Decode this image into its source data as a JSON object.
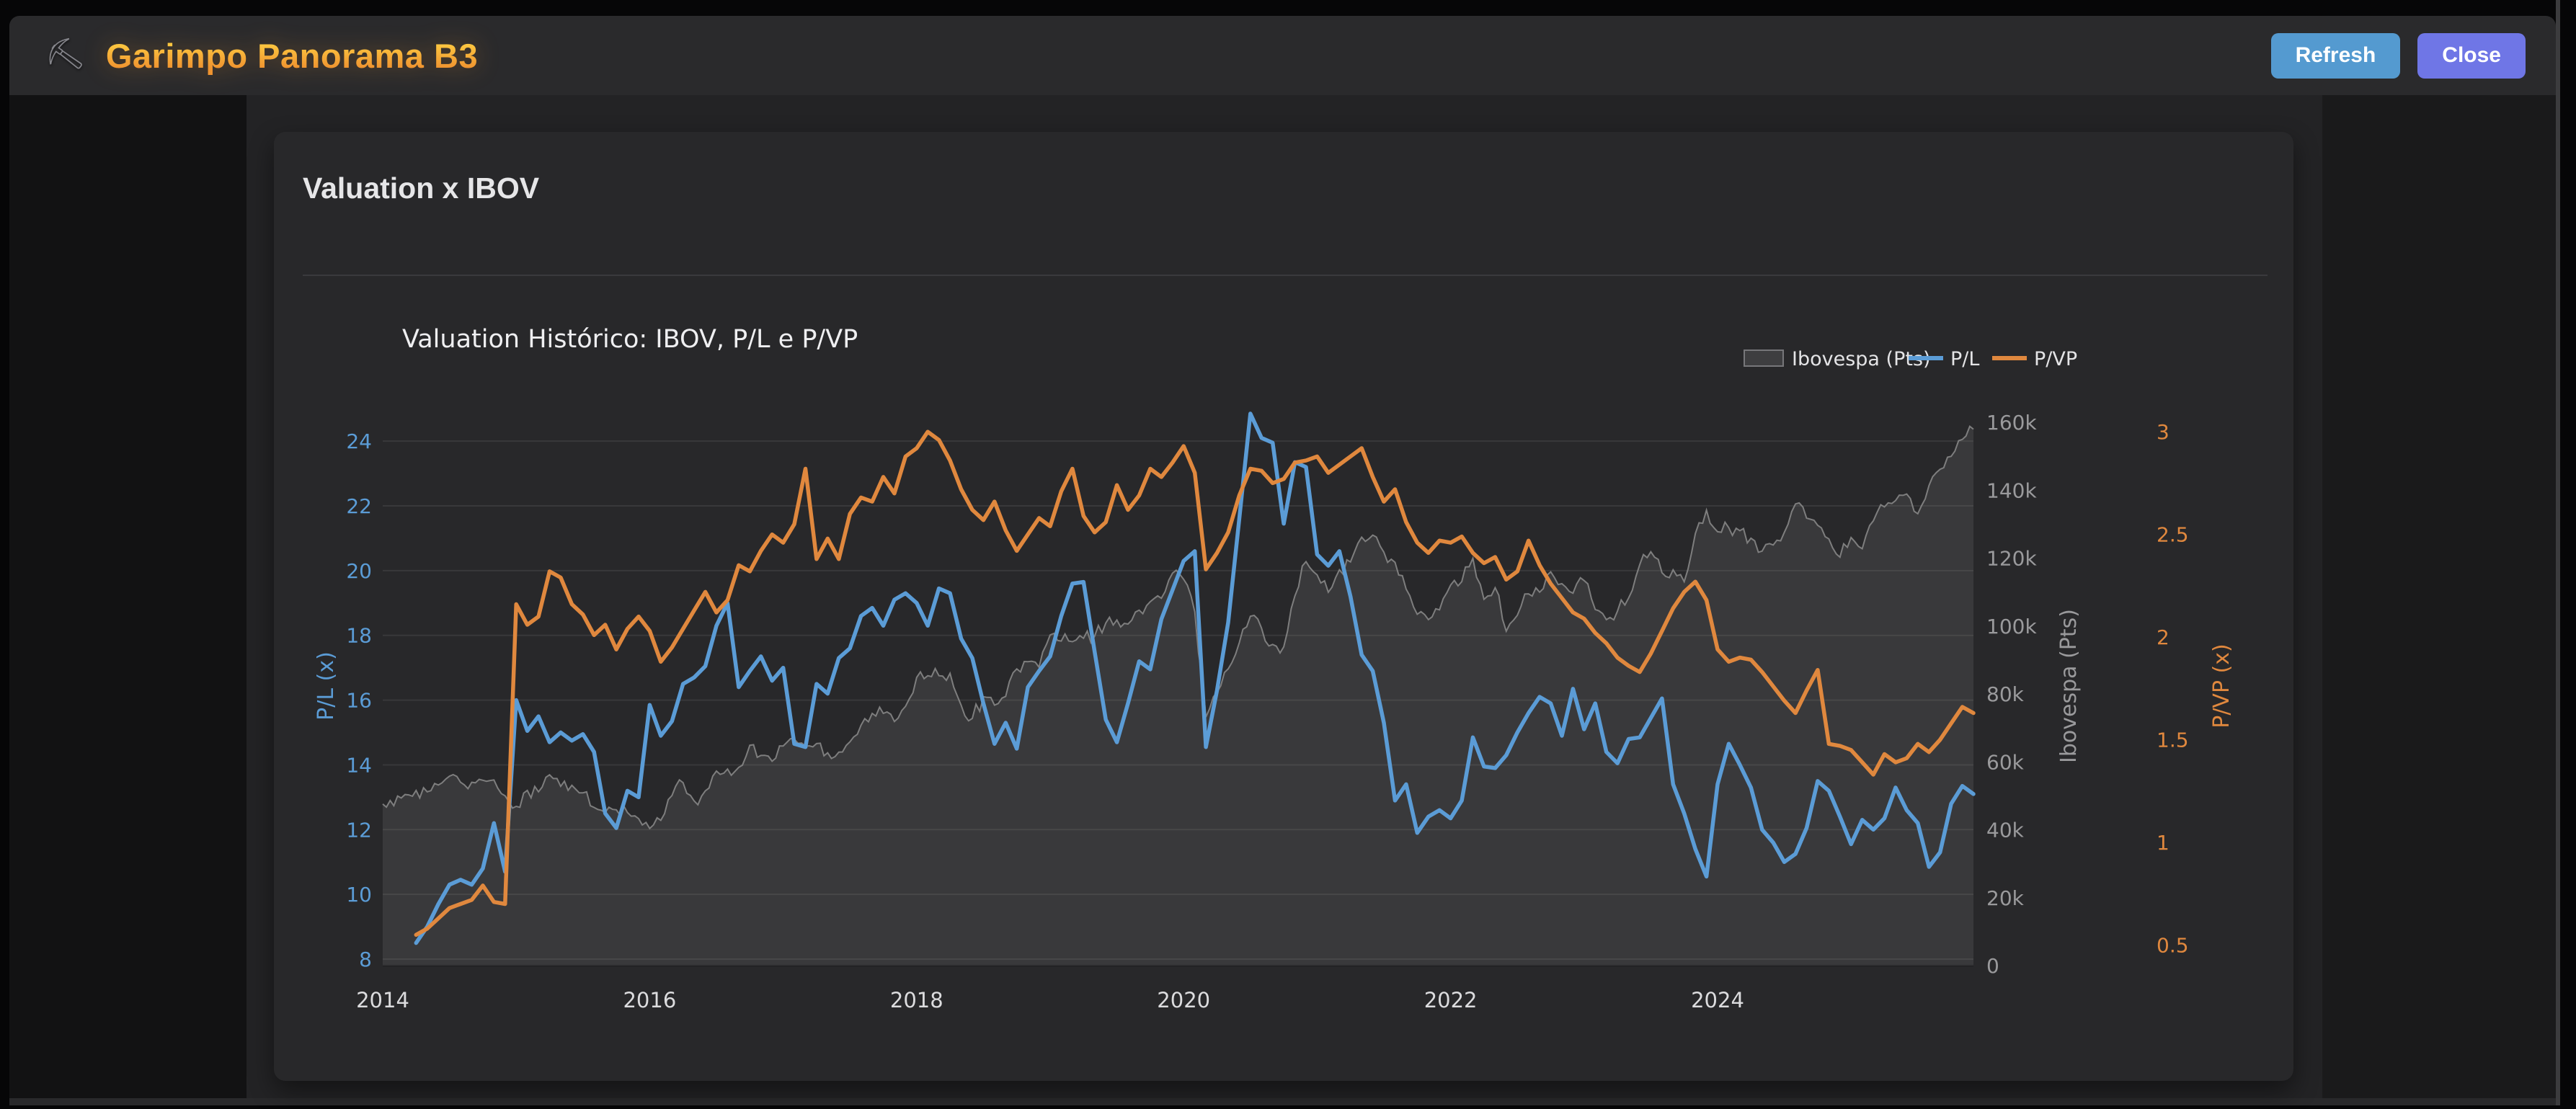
{
  "header": {
    "app_title": "Garimpo Panorama B3",
    "back_icon": "pickaxe",
    "back_glyph": "⛏",
    "refresh_label": "Refresh",
    "close_label": "Close"
  },
  "card": {
    "title": "Valuation x IBOV"
  },
  "chart_data": {
    "type": "line",
    "title": "Valuation Histórico: IBOV, P/L e P/VP",
    "x_start": "2014-01",
    "x_interval": "monthly",
    "x_tick_labels": [
      "2014",
      "2016",
      "2018",
      "2020",
      "2022",
      "2024"
    ],
    "x_tick_indices": [
      0,
      24,
      48,
      72,
      96,
      120
    ],
    "grid": true,
    "legend_position": "top-right",
    "axes": {
      "left": {
        "label": "P/L (x)",
        "color": "#5b9cd6",
        "ticks": [
          8,
          10,
          12,
          14,
          16,
          18,
          20,
          22,
          24
        ],
        "range": [
          7.8,
          25.05
        ]
      },
      "right1": {
        "label": "Ibovespa (Pts)",
        "color": "#9a9a9c",
        "tick_labels": [
          "0",
          "20k",
          "40k",
          "60k",
          "80k",
          "100k",
          "120k",
          "140k",
          "160k"
        ],
        "tick_values": [
          0,
          20,
          40,
          60,
          80,
          100,
          120,
          140,
          160
        ],
        "range": [
          0,
          164.5
        ],
        "values_unit": "thousands of points"
      },
      "right2": {
        "label": "P/VP (x)",
        "color": "#e0883e",
        "ticks": [
          0.5,
          1,
          1.5,
          2,
          2.5,
          3
        ],
        "range": [
          0.4,
          3.12
        ]
      }
    },
    "series": [
      {
        "name": "Ibovespa (Pts)",
        "type": "area",
        "axis": "right1",
        "color": "#8c8c8c",
        "fill": "rgba(150,150,150,0.16)",
        "start_index": 0,
        "values": [
          47.6,
          47.1,
          50.4,
          51.6,
          51.2,
          53.2,
          55.8,
          54.0,
          54.0,
          54.6,
          54.7,
          50.0,
          46.9,
          51.6,
          51.2,
          56.2,
          52.8,
          53.1,
          50.9,
          46.6,
          45.1,
          45.9,
          45.1,
          43.3,
          40.4,
          42.8,
          50.1,
          53.9,
          48.5,
          51.5,
          57.3,
          57.9,
          58.4,
          64.9,
          61.9,
          60.2,
          64.7,
          66.7,
          64.6,
          65.4,
          62.7,
          62.9,
          65.9,
          70.8,
          74.3,
          74.3,
          71.9,
          76.4,
          84.9,
          85.4,
          85.4,
          86.1,
          76.7,
          72.8,
          79.2,
          76.7,
          79.3,
          87.4,
          89.5,
          87.9,
          97.4,
          95.6,
          95.4,
          96.4,
          97.0,
          100.9,
          101.8,
          100.6,
          104.7,
          107.2,
          108.2,
          115.6,
          113.8,
          104.2,
          73.2,
          80.5,
          87.4,
          95.1,
          102.9,
          99.4,
          94.6,
          93.9,
          108.9,
          119.0,
          115.1,
          110.0,
          116.6,
          118.9,
          126.2,
          126.8,
          121.8,
          118.8,
          110.9,
          103.5,
          101.9,
          104.8,
          112.1,
          113.1,
          120.0,
          107.9,
          111.3,
          98.5,
          103.2,
          109.5,
          110.0,
          116.0,
          112.5,
          109.7,
          113.4,
          104.9,
          101.9,
          104.4,
          108.3,
          118.1,
          121.9,
          115.7,
          116.6,
          113.1,
          127.3,
          134.2,
          127.8,
          129.0,
          128.1,
          125.9,
          122.1,
          123.9,
          127.6,
          136.0,
          131.8,
          129.7,
          125.7,
          120.3,
          126.1,
          122.8,
          131.0,
          135.1,
          137.0,
          138.9,
          133.1,
          141.4,
          146.2,
          150.0,
          155.0,
          158.0
        ]
      },
      {
        "name": "P/L",
        "type": "line",
        "axis": "left",
        "color": "#5b9cd6",
        "start_index": 3,
        "values": [
          8.5,
          9.0,
          9.7,
          10.3,
          10.45,
          10.3,
          10.8,
          12.2,
          10.7,
          16.0,
          15.05,
          15.5,
          14.7,
          15.0,
          14.75,
          14.95,
          14.4,
          12.5,
          12.05,
          13.2,
          13.0,
          15.85,
          14.9,
          15.35,
          16.5,
          16.7,
          17.05,
          18.3,
          19.0,
          16.4,
          16.9,
          17.35,
          16.6,
          17.0,
          14.65,
          14.55,
          16.5,
          16.2,
          17.3,
          17.6,
          18.6,
          18.85,
          18.3,
          19.1,
          19.3,
          19.0,
          18.3,
          19.45,
          19.3,
          17.9,
          17.3,
          15.9,
          14.65,
          15.3,
          14.5,
          16.4,
          16.9,
          17.35,
          18.6,
          19.6,
          19.65,
          17.5,
          15.4,
          14.7,
          15.9,
          17.2,
          16.95,
          18.5,
          19.4,
          20.3,
          20.6,
          14.55,
          16.3,
          18.4,
          21.6,
          24.85,
          24.1,
          23.95,
          21.45,
          23.35,
          23.2,
          20.5,
          20.15,
          20.6,
          19.2,
          17.4,
          16.9,
          15.3,
          12.9,
          13.4,
          11.9,
          12.4,
          12.6,
          12.35,
          12.9,
          14.85,
          13.95,
          13.9,
          14.3,
          15.0,
          15.6,
          16.1,
          15.9,
          14.9,
          16.35,
          15.1,
          15.9,
          14.4,
          14.05,
          14.8,
          14.85,
          15.45,
          16.05,
          13.4,
          12.5,
          11.4,
          10.55,
          13.4,
          14.65,
          14.0,
          13.3,
          12.0,
          11.6,
          11.0,
          11.25,
          12.05,
          13.5,
          13.2,
          12.4,
          11.55,
          12.3,
          12.0,
          12.35,
          13.3,
          12.6,
          12.2,
          10.85,
          11.3,
          12.8,
          13.35,
          13.1
        ]
      },
      {
        "name": "P/VP",
        "type": "line",
        "axis": "right2",
        "color": "#e0883e",
        "start_index": 3,
        "values": [
          0.55,
          0.58,
          0.63,
          0.68,
          0.7,
          0.72,
          0.79,
          0.71,
          0.7,
          2.16,
          2.06,
          2.1,
          2.32,
          2.29,
          2.16,
          2.11,
          2.01,
          2.06,
          1.94,
          2.04,
          2.1,
          2.03,
          1.88,
          1.95,
          2.04,
          2.13,
          2.22,
          2.12,
          2.18,
          2.35,
          2.32,
          2.42,
          2.5,
          2.46,
          2.55,
          2.82,
          2.38,
          2.48,
          2.38,
          2.6,
          2.68,
          2.66,
          2.78,
          2.7,
          2.88,
          2.92,
          3.0,
          2.96,
          2.86,
          2.72,
          2.62,
          2.57,
          2.66,
          2.52,
          2.42,
          2.5,
          2.58,
          2.54,
          2.71,
          2.82,
          2.59,
          2.51,
          2.56,
          2.74,
          2.62,
          2.69,
          2.82,
          2.78,
          2.85,
          2.93,
          2.8,
          2.33,
          2.41,
          2.51,
          2.69,
          2.82,
          2.81,
          2.75,
          2.77,
          2.85,
          2.86,
          2.88,
          2.8,
          2.84,
          2.88,
          2.92,
          2.78,
          2.66,
          2.72,
          2.56,
          2.46,
          2.41,
          2.47,
          2.46,
          2.49,
          2.41,
          2.36,
          2.39,
          2.28,
          2.32,
          2.47,
          2.35,
          2.26,
          2.19,
          2.12,
          2.09,
          2.02,
          1.97,
          1.9,
          1.86,
          1.83,
          1.92,
          2.03,
          2.14,
          2.22,
          2.27,
          2.18,
          1.94,
          1.88,
          1.9,
          1.89,
          1.83,
          1.76,
          1.69,
          1.63,
          1.74,
          1.84,
          1.48,
          1.47,
          1.45,
          1.39,
          1.33,
          1.43,
          1.39,
          1.41,
          1.48,
          1.44,
          1.5,
          1.58,
          1.66,
          1.63
        ]
      }
    ]
  }
}
